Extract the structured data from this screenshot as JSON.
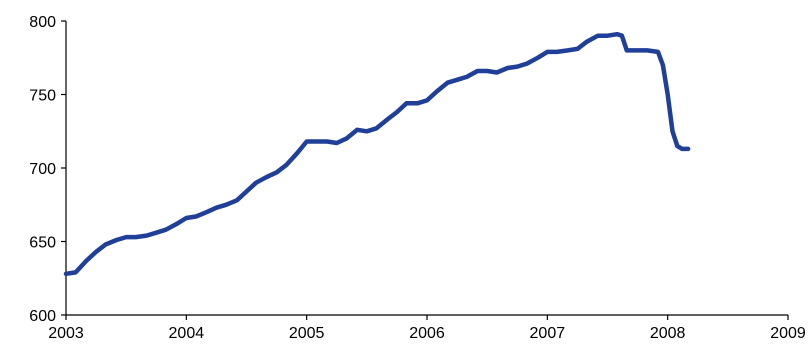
{
  "chart_data": {
    "type": "line",
    "title": "",
    "xlabel": "",
    "ylabel": "",
    "xlim": [
      2003,
      2009
    ],
    "ylim": [
      600,
      800
    ],
    "x_ticks": [
      "2003",
      "2004",
      "2005",
      "2006",
      "2007",
      "2008",
      "2009"
    ],
    "y_ticks": [
      "600",
      "650",
      "700",
      "750",
      "800"
    ],
    "grid": false,
    "legend": "none",
    "series": [
      {
        "color": "#1f3f99",
        "points": [
          [
            2003.0,
            628
          ],
          [
            2003.08,
            629
          ],
          [
            2003.17,
            637
          ],
          [
            2003.25,
            643
          ],
          [
            2003.33,
            648
          ],
          [
            2003.42,
            651
          ],
          [
            2003.5,
            653
          ],
          [
            2003.58,
            653
          ],
          [
            2003.67,
            654
          ],
          [
            2003.75,
            656
          ],
          [
            2003.83,
            658
          ],
          [
            2003.92,
            662
          ],
          [
            2004.0,
            666
          ],
          [
            2004.08,
            667
          ],
          [
            2004.17,
            670
          ],
          [
            2004.25,
            673
          ],
          [
            2004.33,
            675
          ],
          [
            2004.42,
            678
          ],
          [
            2004.5,
            684
          ],
          [
            2004.58,
            690
          ],
          [
            2004.67,
            694
          ],
          [
            2004.75,
            697
          ],
          [
            2004.83,
            702
          ],
          [
            2004.92,
            710
          ],
          [
            2005.0,
            718
          ],
          [
            2005.08,
            718
          ],
          [
            2005.17,
            718
          ],
          [
            2005.25,
            717
          ],
          [
            2005.33,
            720
          ],
          [
            2005.42,
            726
          ],
          [
            2005.5,
            725
          ],
          [
            2005.58,
            727
          ],
          [
            2005.67,
            733
          ],
          [
            2005.75,
            738
          ],
          [
            2005.83,
            744
          ],
          [
            2005.92,
            744
          ],
          [
            2006.0,
            746
          ],
          [
            2006.08,
            752
          ],
          [
            2006.17,
            758
          ],
          [
            2006.25,
            760
          ],
          [
            2006.33,
            762
          ],
          [
            2006.42,
            766
          ],
          [
            2006.5,
            766
          ],
          [
            2006.58,
            765
          ],
          [
            2006.67,
            768
          ],
          [
            2006.75,
            769
          ],
          [
            2006.83,
            771
          ],
          [
            2006.92,
            775
          ],
          [
            2007.0,
            779
          ],
          [
            2007.08,
            779
          ],
          [
            2007.17,
            780
          ],
          [
            2007.25,
            781
          ],
          [
            2007.33,
            786
          ],
          [
            2007.42,
            790
          ],
          [
            2007.5,
            790
          ],
          [
            2007.58,
            791
          ],
          [
            2007.62,
            790
          ],
          [
            2007.66,
            780
          ],
          [
            2007.75,
            780
          ],
          [
            2007.83,
            780
          ],
          [
            2007.92,
            779
          ],
          [
            2007.96,
            770
          ],
          [
            2008.0,
            750
          ],
          [
            2008.04,
            725
          ],
          [
            2008.08,
            715
          ],
          [
            2008.12,
            713
          ],
          [
            2008.17,
            713
          ]
        ]
      }
    ]
  }
}
